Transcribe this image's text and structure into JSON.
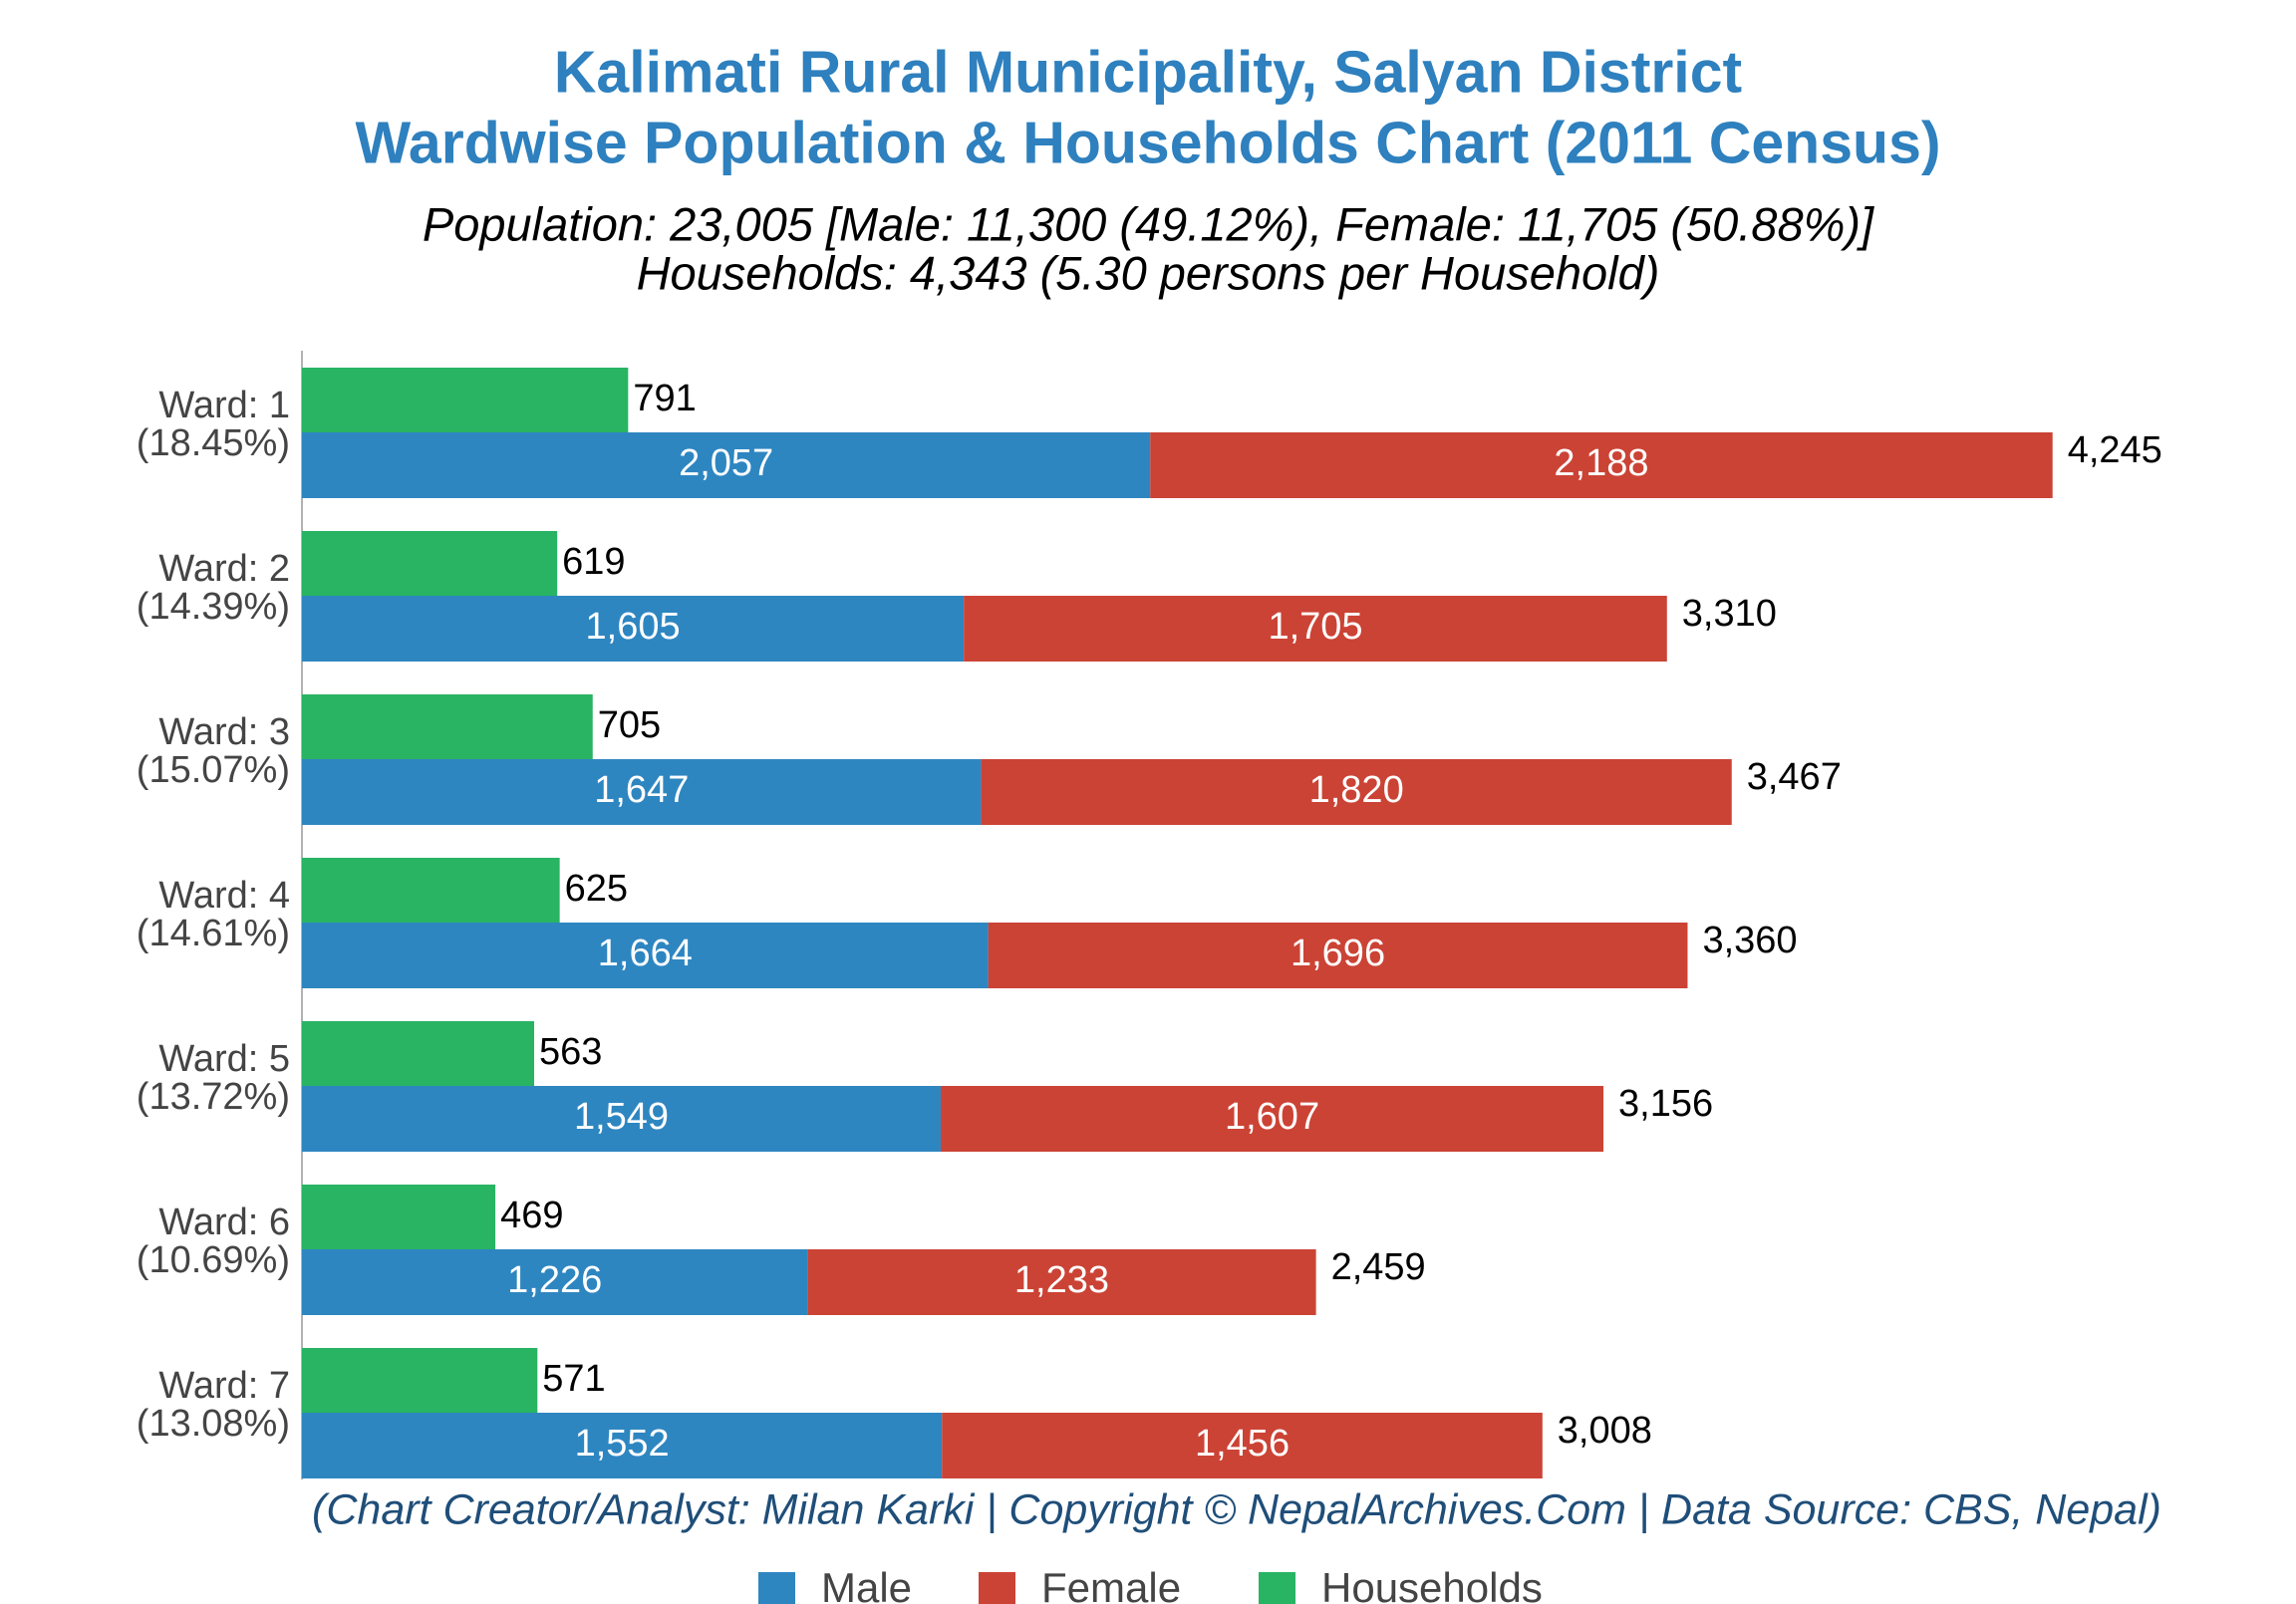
{
  "chart_data": {
    "type": "bar",
    "orientation": "horizontal",
    "title": [
      "Kalimati Rural Municipality, Salyan District",
      "Wardwise Population & Households Chart (2011 Census)"
    ],
    "subtitle": [
      "Population: 23,005 [Male: 11,300 (49.12%), Female: 11,705 (50.88%)]",
      "Households: 4,343 (5.30 persons per Household)"
    ],
    "source": "(Chart Creator/Analyst: Milan Karki | Copyright © NepalArchives.Com | Data Source: CBS, Nepal)",
    "categories": [
      "Ward: 1",
      "Ward: 2",
      "Ward: 3",
      "Ward: 4",
      "Ward: 5",
      "Ward: 6",
      "Ward: 7"
    ],
    "category_notes": [
      "(18.45%)",
      "(14.39%)",
      "(15.07%)",
      "(14.61%)",
      "(13.72%)",
      "(10.69%)",
      "(13.08%)"
    ],
    "series": [
      {
        "name": "Male",
        "color": "#2e86c1",
        "group": "population",
        "values": [
          2057,
          1605,
          1647,
          1664,
          1549,
          1226,
          1552
        ],
        "value_labels": [
          "2,057",
          "1,605",
          "1,647",
          "1,664",
          "1,549",
          "1,226",
          "1,552"
        ]
      },
      {
        "name": "Female",
        "color": "#cb4335",
        "group": "population",
        "values": [
          2188,
          1705,
          1820,
          1696,
          1607,
          1233,
          1456
        ],
        "value_labels": [
          "2,188",
          "1,705",
          "1,820",
          "1,696",
          "1,607",
          "1,233",
          "1,456"
        ]
      },
      {
        "name": "Households",
        "color": "#28b463",
        "group": "households",
        "values": [
          791,
          619,
          705,
          625,
          563,
          469,
          571
        ],
        "value_labels": [
          "791",
          "619",
          "705",
          "625",
          "563",
          "469",
          "571"
        ]
      }
    ],
    "total_values": [
      4245,
      3310,
      3467,
      3360,
      3156,
      2459,
      3008
    ],
    "total_labels": [
      "4,245",
      "3,310",
      "3,467",
      "3,360",
      "3,156",
      "2,459",
      "3,008"
    ],
    "xlim": [
      0,
      4700
    ]
  }
}
